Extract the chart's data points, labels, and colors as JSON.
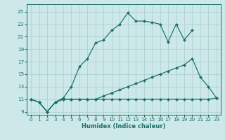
{
  "background_color": "#cce8e8",
  "grid_color": "#aacccc",
  "line_color": "#1a6e6a",
  "xlabel": "Humidex (Indice chaleur)",
  "xlim": [
    -0.5,
    23.5
  ],
  "ylim": [
    8.5,
    26.2
  ],
  "xticks": [
    0,
    1,
    2,
    3,
    4,
    5,
    6,
    7,
    8,
    9,
    10,
    11,
    12,
    13,
    14,
    15,
    16,
    17,
    18,
    19,
    20,
    21,
    22,
    23
  ],
  "yticks": [
    9,
    11,
    13,
    15,
    17,
    19,
    21,
    23,
    25
  ],
  "line1_x": [
    0,
    1,
    2,
    3,
    4,
    5,
    6,
    7,
    8,
    9,
    10,
    11,
    12,
    13,
    14,
    15,
    16,
    17,
    18,
    19,
    20
  ],
  "line1_y": [
    11,
    10.5,
    9,
    10.5,
    11.2,
    13,
    16.2,
    17.5,
    20,
    20.5,
    22,
    23,
    24.8,
    23.5,
    23.5,
    23.3,
    23,
    20.2,
    23,
    20.5,
    22
  ],
  "line2_x": [
    0,
    1,
    2,
    3,
    4,
    5,
    6,
    7,
    8,
    9,
    10,
    11,
    12,
    13,
    14,
    15,
    16,
    17,
    18,
    19,
    20,
    21,
    22,
    23
  ],
  "line2_y": [
    11,
    10.5,
    9,
    10.5,
    11,
    11,
    11,
    11,
    11,
    11.5,
    12,
    12.5,
    13,
    13.5,
    14,
    14.5,
    15,
    15.5,
    16,
    16.5,
    17.5,
    14.5,
    13,
    11.2
  ],
  "line3_x": [
    0,
    1,
    2,
    3,
    4,
    5,
    6,
    7,
    8,
    9,
    10,
    11,
    12,
    13,
    14,
    15,
    16,
    17,
    18,
    19,
    20,
    21,
    22,
    23
  ],
  "line3_y": [
    11,
    10.5,
    9,
    10.5,
    11,
    11,
    11,
    11,
    11,
    11,
    11,
    11,
    11,
    11,
    11,
    11,
    11,
    11,
    11,
    11,
    11,
    11,
    11,
    11.2
  ]
}
